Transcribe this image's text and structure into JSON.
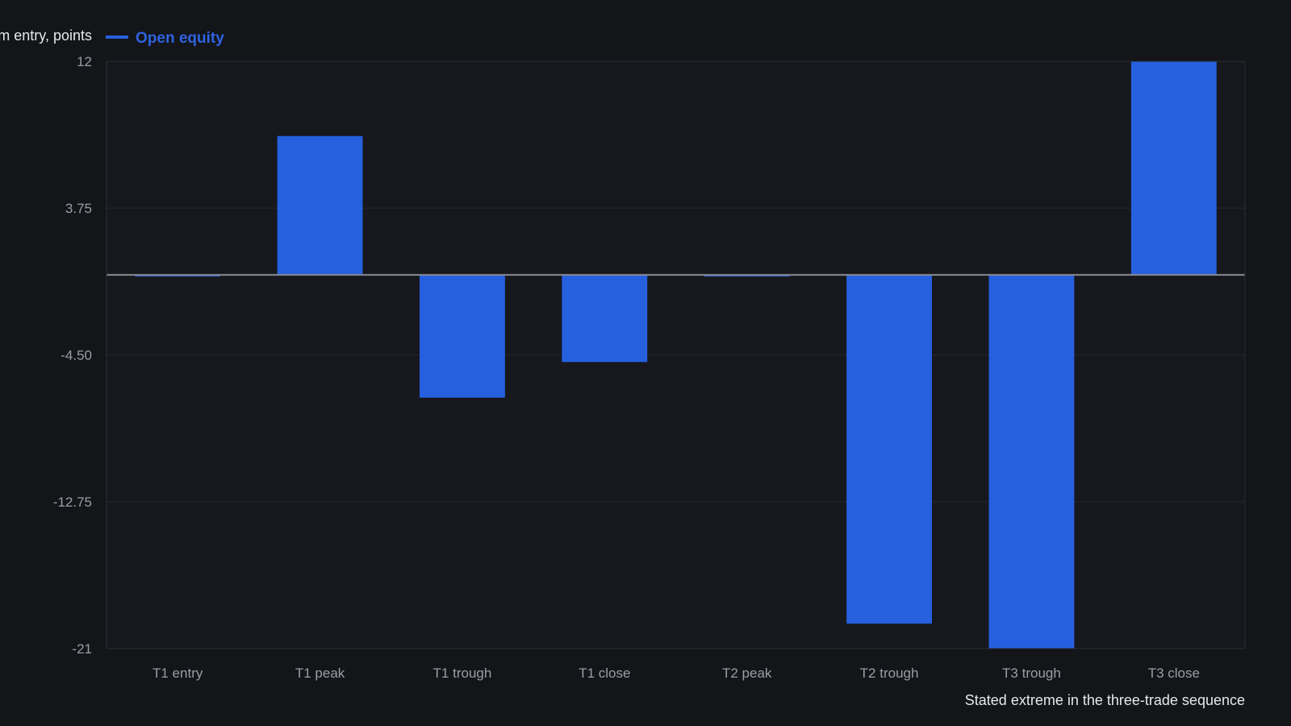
{
  "chart_data": {
    "type": "bar",
    "ylabel": "Change from entry, points",
    "xlabel": "Stated extreme in the three-trade sequence",
    "legend": {
      "label": "Open equity",
      "placement": "top-left"
    },
    "categories": [
      "T1 entry",
      "T1 peak",
      "T1 trough",
      "T1 close",
      "T2 peak",
      "T2 trough",
      "T3 trough",
      "T3 close"
    ],
    "series": [
      {
        "name": "Open equity",
        "values": [
          0,
          7.8,
          -6.9,
          -4.9,
          0,
          -19.6,
          -21,
          12
        ]
      }
    ],
    "ylim": [
      -21,
      12
    ],
    "yticks": [
      12,
      3.75,
      -4.5,
      -12.75,
      -21
    ],
    "ytick_labels": [
      "12",
      "3.75",
      "-4.50",
      "-12.75",
      "-21"
    ],
    "grid": true,
    "colors": {
      "bar": "#2660df",
      "background": "#131519",
      "plot_background": "#16181d",
      "grid": "#262930",
      "zero_line": "#8a8d93",
      "tick_text": "#9a9ea6",
      "title_text": "#e6e8ec",
      "legend_text": "#2f63e0"
    }
  }
}
